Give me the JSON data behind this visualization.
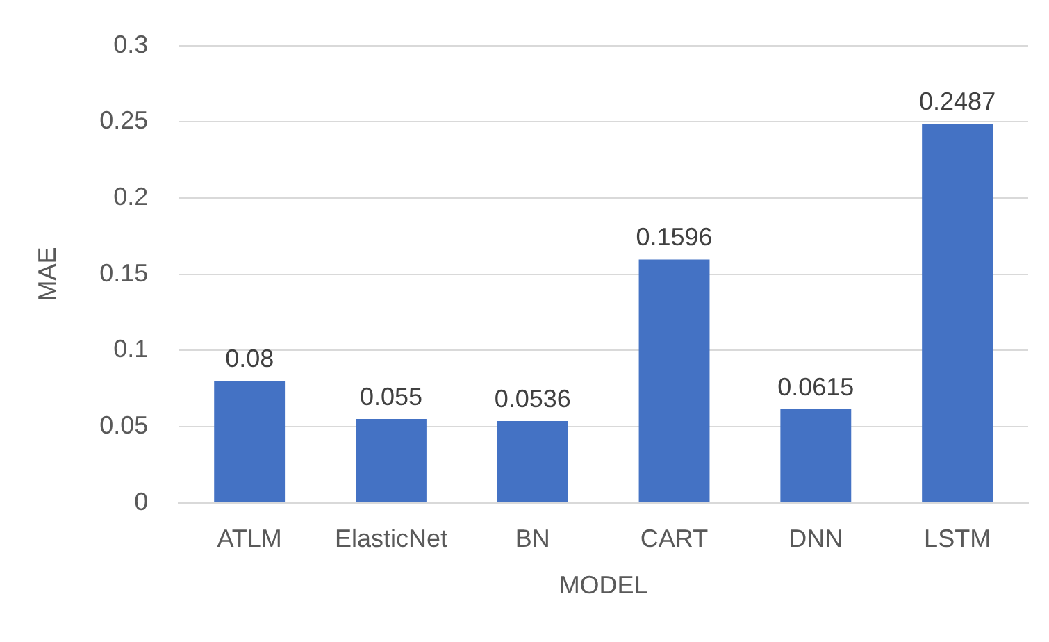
{
  "chart_data": {
    "type": "bar",
    "xlabel": "MODEL",
    "ylabel": "MAE",
    "categories": [
      "ATLM",
      "ElasticNet",
      "BN",
      "CART",
      "DNN",
      "LSTM"
    ],
    "values": [
      0.08,
      0.055,
      0.0536,
      0.1596,
      0.0615,
      0.2487
    ],
    "color": "#4472c4",
    "ylim": [
      0,
      0.3
    ],
    "yticks": [
      0,
      0.05,
      0.1,
      0.15,
      0.2,
      0.25,
      0.3
    ],
    "grid": "y",
    "legend": false,
    "data_labels": true
  }
}
